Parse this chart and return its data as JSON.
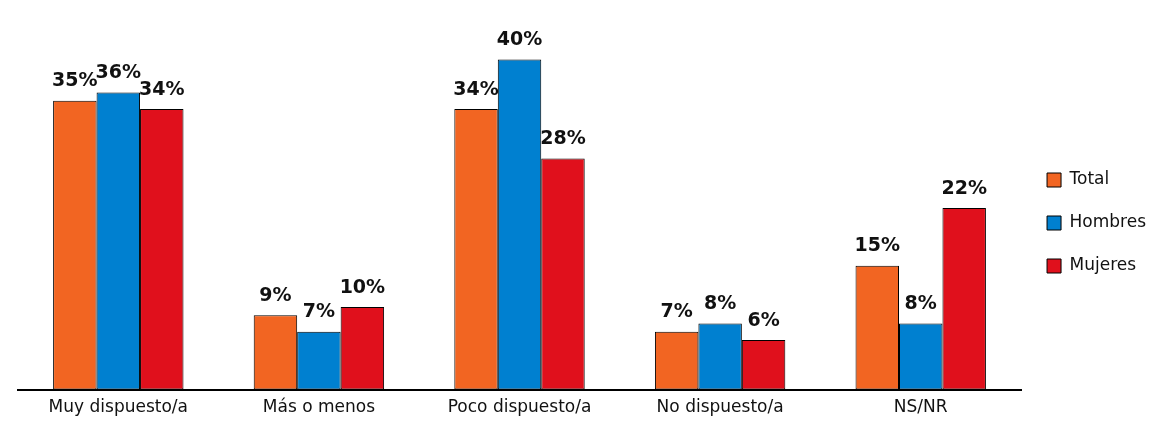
{
  "chart_data": {
    "type": "bar",
    "categories": [
      "Muy dispuesto/a",
      "Más o menos",
      "Poco dispuesto/a",
      "No dispuesto/a",
      "NS/NR"
    ],
    "series": [
      {
        "name": "Total",
        "color": "#f26522",
        "values": [
          35,
          9,
          34,
          7,
          15
        ],
        "value_labels": [
          "35%",
          "9%",
          "34%",
          "7%",
          "15%"
        ]
      },
      {
        "name": "Hombres",
        "color": "#0080d0",
        "values": [
          36,
          7,
          40,
          8,
          8
        ],
        "value_labels": [
          "36%",
          "7%",
          "40%",
          "8%",
          "8%"
        ]
      },
      {
        "name": "Mujeres",
        "color": "#e0101c",
        "values": [
          34,
          10,
          28,
          6,
          22
        ],
        "value_labels": [
          "34%",
          "10%",
          "28%",
          "6%",
          "22%"
        ]
      }
    ],
    "grid": false,
    "legend": "right"
  }
}
